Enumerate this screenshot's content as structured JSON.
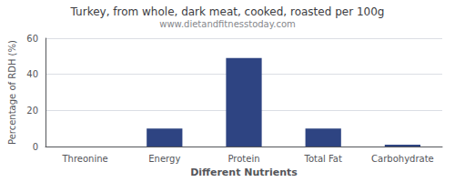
{
  "chart_data": {
    "type": "bar",
    "title": "Turkey, from whole, dark meat, cooked, roasted per 100g",
    "subtitle": "www.dietandfitnesstoday.com",
    "xlabel": "Different Nutrients",
    "ylabel": "Percentage of RDH (%)",
    "categories": [
      "Threonine",
      "Energy",
      "Protein",
      "Total Fat",
      "Carbohydrate"
    ],
    "values": [
      0,
      10,
      49,
      10,
      1
    ],
    "color": "#2e4482",
    "ylim": [
      0,
      60
    ],
    "yticks": [
      0,
      20,
      40,
      60
    ],
    "grid": true
  }
}
